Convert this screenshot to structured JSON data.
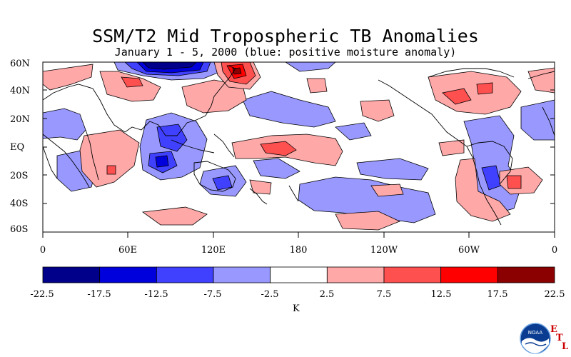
{
  "title": "SSM/T2 Mid Tropospheric TB Anomalies",
  "subtitle": "January 1 - 5, 2000 (blue: positive moisture anomaly)",
  "lat_labels": [
    "60N",
    "40N",
    "20N",
    "EQ",
    "20S",
    "40S",
    "60S"
  ],
  "lon_labels": [
    "0",
    "60E",
    "120E",
    "180",
    "120W",
    "60W",
    "0"
  ],
  "colorbar": {
    "ticks": [
      "-22.5",
      "-17.5",
      "-12.5",
      "-7.5",
      "-2.5",
      "2.5",
      "7.5",
      "12.5",
      "17.5",
      "22.5"
    ],
    "colors": [
      "#00008b",
      "#0000dd",
      "#4040ff",
      "#9898ff",
      "#ffffff",
      "#ffa8a8",
      "#ff5050",
      "#ff0000",
      "#8b0000"
    ],
    "unit": "K"
  },
  "logo": {
    "text": "NOAA",
    "letters": [
      "E",
      "T",
      "L"
    ]
  }
}
